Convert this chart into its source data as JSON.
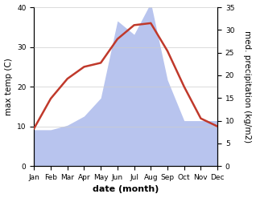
{
  "months": [
    "Jan",
    "Feb",
    "Mar",
    "Apr",
    "May",
    "Jun",
    "Jul",
    "Aug",
    "Sep",
    "Oct",
    "Nov",
    "Dec"
  ],
  "temperature": [
    9.5,
    17,
    22,
    25,
    26,
    32,
    35.5,
    36,
    29,
    20,
    12,
    10
  ],
  "precipitation": [
    8,
    8,
    9,
    11,
    15,
    32,
    29,
    36,
    19,
    10,
    10,
    10
  ],
  "temp_color": "#c0392b",
  "precip_color": "#b8c4ee",
  "title": "",
  "xlabel": "date (month)",
  "ylabel_left": "max temp (C)",
  "ylabel_right": "med. precipitation (kg/m2)",
  "ylim_left": [
    0,
    40
  ],
  "ylim_right": [
    0,
    35
  ],
  "yticks_left": [
    0,
    10,
    20,
    30,
    40
  ],
  "yticks_right": [
    0,
    5,
    10,
    15,
    20,
    25,
    30,
    35
  ],
  "background_color": "#ffffff",
  "temp_linewidth": 1.8,
  "xlabel_fontsize": 8,
  "ylabel_fontsize": 7.5,
  "tick_fontsize": 6.5
}
